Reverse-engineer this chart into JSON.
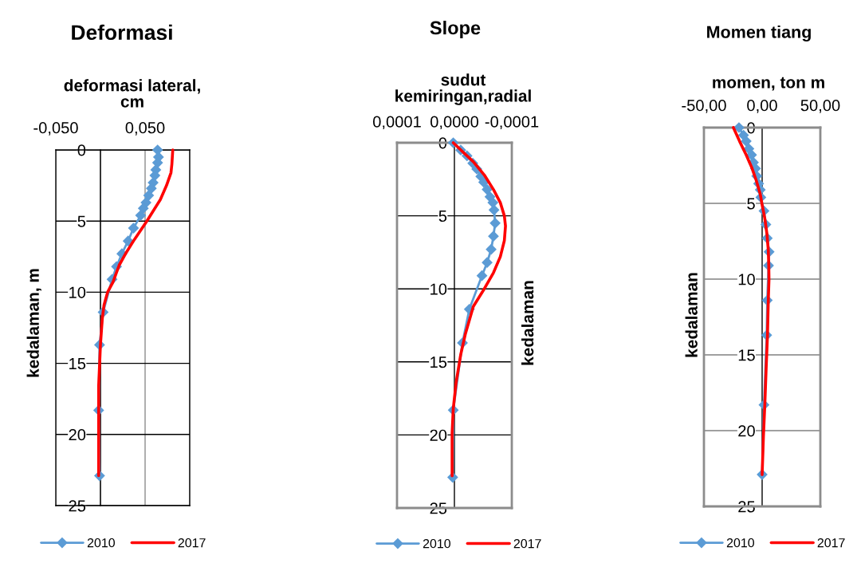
{
  "chart_data": [
    {
      "type": "line",
      "title": "Deformasi",
      "xlabel": "deformasi lateral,\ncm",
      "ylabel": "kedalaman, m",
      "xlim": [
        -0.05,
        0.1
      ],
      "xticks": [
        {
          "value": -0.05,
          "label": "-0,050"
        },
        {
          "value": 0,
          "label": null
        },
        {
          "value": 0.05,
          "label": "0,050"
        },
        {
          "value": 0.1,
          "label": null
        }
      ],
      "ylim": [
        25,
        0
      ],
      "yticks": [
        0,
        5,
        10,
        15,
        20,
        25
      ],
      "grid": true,
      "legend": "bottom",
      "series": [
        {
          "name": "2010",
          "color": "#5b9bd5",
          "marker": "diamond",
          "x": [
            0.064,
            0.065,
            0.064,
            0.062,
            0.061,
            0.059,
            0.057,
            0.054,
            0.051,
            0.048,
            0.045,
            0.037,
            0.031,
            0.024,
            0.018,
            0.013,
            0.003,
            -0.001,
            -0.002,
            -0.001
          ],
          "values": [
            0,
            0.5,
            0.9,
            1.4,
            1.8,
            2.3,
            2.7,
            3.2,
            3.7,
            4.1,
            4.6,
            5.5,
            6.4,
            7.3,
            8.2,
            9.1,
            11.4,
            13.7,
            18.3,
            22.9
          ]
        },
        {
          "name": "2017",
          "color": "#ff0000",
          "marker": "none",
          "x": [
            0.081,
            0.08,
            0.079,
            0.074,
            0.067,
            0.058,
            0.052,
            0.038,
            0.029,
            0.021,
            0.014,
            0.008,
            0.004,
            0.002,
            0.0,
            -0.002,
            -0.002,
            -0.002,
            -0.002
          ],
          "values": [
            0,
            1.0,
            1.6,
            2.5,
            3.5,
            4.4,
            5.0,
            6.3,
            7.2,
            8.1,
            9.3,
            10.0,
            10.9,
            11.9,
            13.7,
            16.6,
            18.4,
            20.3,
            22.9
          ]
        }
      ]
    },
    {
      "type": "line",
      "title": "Slope",
      "xlabel": "sudut\nkemiringan,radial",
      "ylabel": "kedalaman",
      "xlim": [
        0.0001,
        -0.0001
      ],
      "xticks": [
        {
          "value": 0.0001,
          "label": "0,0001"
        },
        {
          "value": 0,
          "label": "0,0000"
        },
        {
          "value": -0.0001,
          "label": "-0,0001"
        }
      ],
      "ylim": [
        25,
        0
      ],
      "yticks": [
        0,
        5,
        10,
        15,
        20,
        25
      ],
      "grid": "y",
      "legend": "bottom",
      "series": [
        {
          "name": "2010",
          "color": "#5b9bd5",
          "marker": "diamond",
          "x": [
            2e-06,
            -1.1e-05,
            -2.2e-05,
            -3.2e-05,
            -3.9e-05,
            -4.6e-05,
            -5.1e-05,
            -5.7e-05,
            -6.2e-05,
            -6.7e-05,
            -6.9e-05,
            -7.1e-05,
            -6.8e-05,
            -6.4e-05,
            -5.7e-05,
            -4.8e-05,
            -2.6e-05,
            -1.4e-05,
            2e-06,
            3e-06
          ],
          "values": [
            0,
            0.5,
            0.9,
            1.4,
            1.8,
            2.3,
            2.7,
            3.2,
            3.7,
            4.1,
            4.6,
            5.5,
            6.4,
            7.3,
            8.2,
            9.1,
            11.4,
            13.7,
            18.3,
            22.9
          ]
        },
        {
          "name": "2017",
          "color": "#ff0000",
          "marker": "none",
          "x": [
            2e-06,
            -1.4e-05,
            -3.3e-05,
            -5.2e-05,
            -6.8e-05,
            -8e-05,
            -8.7e-05,
            -8.9e-05,
            -8.7e-05,
            -8e-05,
            -6.8e-05,
            -5.2e-05,
            -3.3e-05,
            -1.9e-05,
            -1.1e-05,
            -3e-06,
            2e-06,
            4e-06,
            4e-06
          ],
          "values": [
            0,
            0.6,
            1.3,
            2.2,
            3.2,
            4.1,
            5.0,
            5.7,
            6.7,
            7.8,
            8.9,
            10.0,
            11.2,
            13.1,
            14.5,
            16.4,
            18.2,
            19.9,
            22.8
          ]
        }
      ]
    },
    {
      "type": "line",
      "title": "Momen tiang",
      "xlabel": "momen, ton m",
      "ylabel": "kedalaman",
      "xlim": [
        -50,
        50
      ],
      "xticks": [
        {
          "value": -50,
          "label": "-50,00"
        },
        {
          "value": 0,
          "label": "0,00"
        },
        {
          "value": 50,
          "label": "50,00"
        }
      ],
      "ylim": [
        25,
        0
      ],
      "yticks": [
        0,
        5,
        10,
        15,
        20,
        25
      ],
      "grid": "y",
      "legend": "bottom",
      "series": [
        {
          "name": "2010",
          "color": "#5b9bd5",
          "marker": "diamond",
          "x": [
            -19.9,
            -16.0,
            -13.7,
            -11.4,
            -9.1,
            -7.5,
            -5.7,
            -4.6,
            -3.0,
            -1.6,
            -1.1,
            1.6,
            3.2,
            4.4,
            6.0,
            5.5,
            4.4,
            3.9,
            1.6,
            0.0
          ],
          "values": [
            0,
            0.5,
            0.9,
            1.4,
            1.8,
            2.3,
            2.7,
            3.2,
            3.7,
            4.1,
            4.6,
            5.5,
            6.4,
            7.3,
            8.2,
            9.1,
            11.4,
            13.7,
            18.3,
            22.9
          ]
        },
        {
          "name": "2017",
          "color": "#ff0000",
          "marker": "none",
          "x": [
            -24.7,
            -19.4,
            -13.7,
            -9.1,
            -5.0,
            -1.6,
            0.0,
            2.3,
            4.1,
            5.3,
            5.7,
            5.9,
            5.3,
            4.6,
            3.4,
            2.3,
            1.1,
            0.0
          ],
          "values": [
            0,
            0.9,
            1.8,
            2.6,
            3.5,
            4.4,
            5.1,
            6.0,
            7.0,
            8.1,
            9.1,
            10.0,
            11.4,
            13.7,
            16.0,
            18.3,
            20.4,
            22.9
          ]
        }
      ]
    }
  ]
}
